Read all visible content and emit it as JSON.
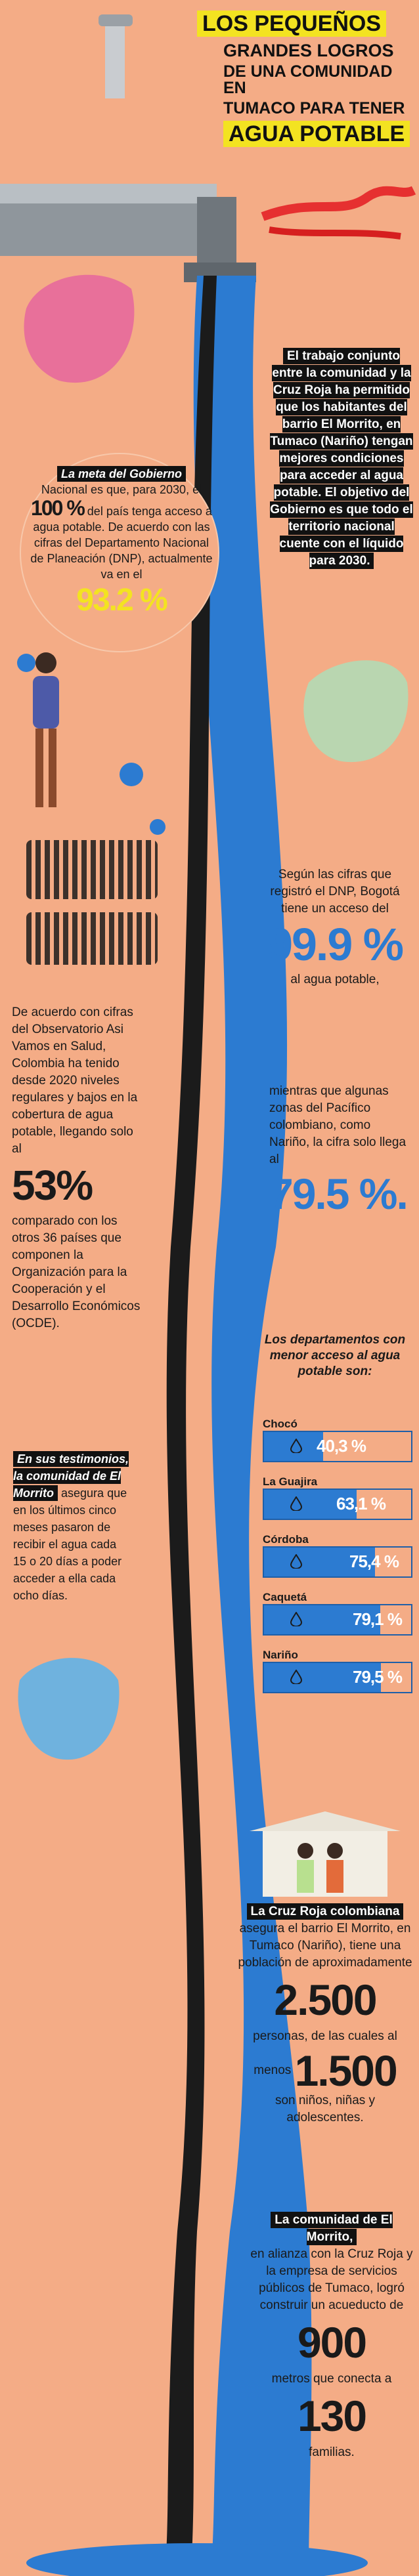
{
  "title": {
    "line1": "LOS PEQUEÑOS",
    "line2": "GRANDES LOGROS",
    "line3": "DE UNA COMUNIDAD EN",
    "line4": "TUMACO PARA TENER",
    "line5": "AGUA POTABLE"
  },
  "intro": {
    "text": "El trabajo conjunto entre la comunidad y la Cruz Roja ha permitido que los habitantes del barrio El Morrito, en Tumaco (Nariño) tengan mejores condiciones para acceder al agua potable. El objetivo del Gobierno es que todo el territorio nacional cuente con el líquido para 2030."
  },
  "goal": {
    "highlight": "La meta del Gobierno",
    "text1": "Nacional es que, para 2030, el",
    "pct": "100 %",
    "text2": "del país tenga acceso a agua potable. De acuerdo con las cifras del Departamento Nacional de Planeación (DNP), actualmente va en el",
    "current": "93.2 %"
  },
  "bogota": {
    "text": "Según las cifras que registró el DNP, Bogotá tiene un acceso del",
    "pct": "99.9 %",
    "text2": "al agua potable,"
  },
  "pacifico": {
    "text": "mientras que algunas zonas del Pacífico colombiano, como Nariño, la cifra solo llega al",
    "pct": "79.5 %."
  },
  "ocde": {
    "text1": "De acuerdo con cifras del Observatorio Asi Vamos en Salud, Colombia ha tenido desde 2020 niveles regulares y bajos en la cobertura de agua potable, llegando solo al",
    "pct": "53%",
    "text2": "comparado con los otros 36 países que componen la Organización para la Cooperación y el Desarrollo Económicos (OCDE)."
  },
  "morrito_testimony": {
    "highlight": "En sus testimonios, la comunidad de El Morrito",
    "text": "asegura que en los últimos cinco meses pasaron de recibir el agua cada 15 o 20 días a poder acceder a ella cada ocho días."
  },
  "departments": {
    "title": "Los departamentos con menor acceso al agua potable son:",
    "items": [
      {
        "name": "Chocó",
        "value": "40,3 %",
        "fraction": 0.403
      },
      {
        "name": "La Guajira",
        "value": "63,1 %",
        "fraction": 0.631
      },
      {
        "name": "Córdoba",
        "value": "75,4 %",
        "fraction": 0.754
      },
      {
        "name": "Caquetá",
        "value": "79,1 %",
        "fraction": 0.791
      },
      {
        "name": "Nariño",
        "value": "79,5 %",
        "fraction": 0.795
      }
    ]
  },
  "cruz_roja": {
    "highlight": "La Cruz Roja colombiana",
    "text1": "asegura el barrio El Morrito, en Tumaco (Nariño), tiene una población de aproximadamente",
    "num1": "2.500",
    "text2": "personas, de las cuales al",
    "text3": "menos",
    "num2": "1.500",
    "text4": "son niños, niñas y adolescentes."
  },
  "acueducto": {
    "highlight": "La comunidad de El Morrito,",
    "text1": "en alianza con la Cruz Roja y la empresa de servicios públicos de Tumaco, logró construir un acueducto de",
    "num1": "900",
    "text2": "metros que conecta a",
    "num2": "130",
    "text3": "familias."
  },
  "colors": {
    "background": "#f4ac86",
    "water": "#2c7bd1",
    "title_highlight": "#f3e321"
  }
}
